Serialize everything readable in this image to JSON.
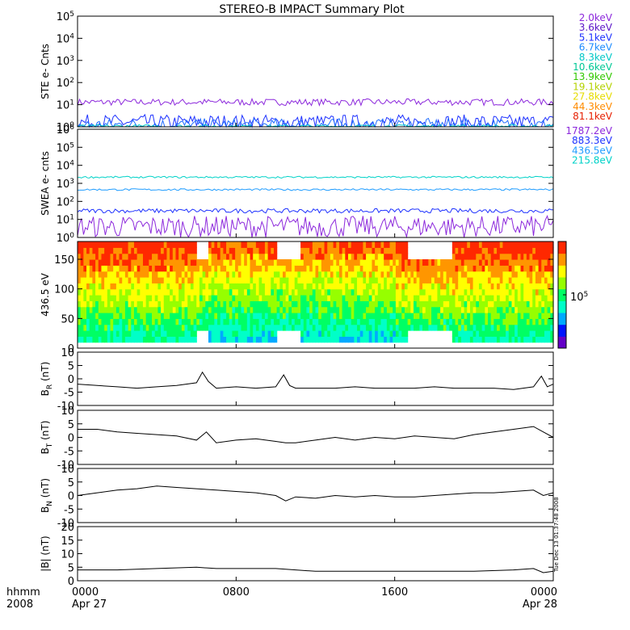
{
  "title": "STEREO-B IMPACT Summary Plot",
  "footer": {
    "left_top": "hhmm",
    "left_bottom": "2008",
    "ticks": [
      {
        "time": "0000",
        "date": "Apr 27",
        "hour": 0
      },
      {
        "time": "0800",
        "date": "",
        "hour": 8
      },
      {
        "time": "1600",
        "date": "",
        "hour": 16
      },
      {
        "time": "0000",
        "date": "Apr 28",
        "hour": 24
      }
    ]
  },
  "timestamp": "Tue Dec 13 01:37:48 2008",
  "colorbar": {
    "label": "10^5",
    "colors": [
      "#6400c8",
      "#0014ff",
      "#00aaff",
      "#00ffc8",
      "#00ff64",
      "#96ff00",
      "#ffff00",
      "#ff9600",
      "#ff2800"
    ]
  },
  "chart_data": [
    {
      "type": "line",
      "id": "ste",
      "ylabel": "STE e- Cnts",
      "log": true,
      "ylim": [
        1,
        100000
      ],
      "yticks": [
        {
          "v": 1,
          "t": "10^0"
        },
        {
          "v": 10,
          "t": "10^1"
        },
        {
          "v": 100,
          "t": "10^2"
        },
        {
          "v": 1000,
          "t": "10^3"
        },
        {
          "v": 10000,
          "t": "10^4"
        },
        {
          "v": 100000,
          "t": "10^5"
        }
      ],
      "legend": [
        {
          "name": "2.0keV",
          "color": "#8c28dc"
        },
        {
          "name": "3.6keV",
          "color": "#5a14c8"
        },
        {
          "name": "5.1keV",
          "color": "#1e32ff"
        },
        {
          "name": "6.7keV",
          "color": "#1e8cff"
        },
        {
          "name": "8.3keV",
          "color": "#00c8c8"
        },
        {
          "name": "10.6keV",
          "color": "#00c896"
        },
        {
          "name": "13.9keV",
          "color": "#32c800"
        },
        {
          "name": "19.1keV",
          "color": "#b4d200"
        },
        {
          "name": "27.8keV",
          "color": "#e6dc00"
        },
        {
          "name": "44.3keV",
          "color": "#ff8c00"
        },
        {
          "name": "81.1keV",
          "color": "#e61e00"
        }
      ],
      "series": [
        {
          "name": "2.0keV",
          "color": "#8c28dc",
          "base": 13,
          "noise": 0.15
        },
        {
          "name": "3.6keV",
          "color": "#1e32ff",
          "base": 1.6,
          "noise": 0.35
        },
        {
          "name": "5.1keV",
          "color": "#1e6cff",
          "base": 1.2,
          "noise": 0.3
        },
        {
          "name": "8.3keV",
          "color": "#00c8c8",
          "base": 1.05,
          "noise": 0.08
        }
      ]
    },
    {
      "type": "line",
      "id": "swea",
      "ylabel": "SWEA e- cnts",
      "log": true,
      "ylim": [
        1,
        1000000
      ],
      "yticks": [
        {
          "v": 1,
          "t": "10^0"
        },
        {
          "v": 10,
          "t": "10^1"
        },
        {
          "v": 100,
          "t": "10^2"
        },
        {
          "v": 1000,
          "t": "10^3"
        },
        {
          "v": 10000,
          "t": "10^4"
        },
        {
          "v": 100000,
          "t": "10^5"
        },
        {
          "v": 1000000,
          "t": "10^6"
        }
      ],
      "legend": [
        {
          "name": "1787.2eV",
          "color": "#8c28dc"
        },
        {
          "name": "883.3eV",
          "color": "#1e32ff"
        },
        {
          "name": "436.5eV",
          "color": "#1e9cff"
        },
        {
          "name": "215.8eV",
          "color": "#00d2c8"
        }
      ],
      "series": [
        {
          "name": "1787.2eV",
          "color": "#8c28dc",
          "base": 4,
          "noise": 0.6
        },
        {
          "name": "883.3eV",
          "color": "#1e32ff",
          "base": 30,
          "noise": 0.12
        },
        {
          "name": "436.5eV",
          "color": "#1e9cff",
          "base": 450,
          "noise": 0.05
        },
        {
          "name": "215.8eV",
          "color": "#00d2c8",
          "base": 2200,
          "noise": 0.05
        }
      ]
    },
    {
      "type": "heatmap",
      "id": "pad",
      "ylabel": "436.5 eV",
      "ylim": [
        0,
        180
      ],
      "yticks": [
        {
          "v": 0,
          "t": "0"
        },
        {
          "v": 50,
          "t": "50"
        },
        {
          "v": 100,
          "t": "100"
        },
        {
          "v": 150,
          "t": "150"
        }
      ],
      "gaps": [
        [
          5.9,
          6.6
        ],
        [
          10.0,
          11.2
        ],
        [
          16.6,
          18.8
        ]
      ]
    },
    {
      "type": "line",
      "id": "br",
      "ylabel": "B_R (nT)",
      "ylim": [
        -10,
        10
      ],
      "yticks": [
        {
          "v": -10,
          "t": "-10"
        },
        {
          "v": -5,
          "t": "-5"
        },
        {
          "v": 0,
          "t": "0"
        },
        {
          "v": 5,
          "t": "5"
        },
        {
          "v": 10,
          "t": "10"
        }
      ],
      "points": [
        [
          0,
          -2
        ],
        [
          1,
          -2.5
        ],
        [
          2,
          -3
        ],
        [
          3,
          -3.5
        ],
        [
          4,
          -3
        ],
        [
          5,
          -2.5
        ],
        [
          6,
          -1.5
        ],
        [
          6.3,
          2.5
        ],
        [
          6.6,
          -1
        ],
        [
          7,
          -3.5
        ],
        [
          8,
          -3
        ],
        [
          9,
          -3.5
        ],
        [
          10,
          -3
        ],
        [
          10.4,
          1.5
        ],
        [
          10.7,
          -2.5
        ],
        [
          11,
          -3.5
        ],
        [
          12,
          -3.5
        ],
        [
          13,
          -3.5
        ],
        [
          14,
          -3
        ],
        [
          15,
          -3.5
        ],
        [
          16,
          -3.5
        ],
        [
          17,
          -3.5
        ],
        [
          18,
          -3
        ],
        [
          19,
          -3.5
        ],
        [
          20,
          -3.5
        ],
        [
          21,
          -3.5
        ],
        [
          22,
          -4
        ],
        [
          23,
          -3
        ],
        [
          23.4,
          1
        ],
        [
          23.7,
          -3
        ],
        [
          24,
          -2
        ]
      ]
    },
    {
      "type": "line",
      "id": "bt",
      "ylabel": "B_T (nT)",
      "ylim": [
        -10,
        10
      ],
      "yticks": [
        {
          "v": -10,
          "t": "-10"
        },
        {
          "v": -5,
          "t": "-5"
        },
        {
          "v": 0,
          "t": "0"
        },
        {
          "v": 5,
          "t": "5"
        },
        {
          "v": 10,
          "t": "10"
        }
      ],
      "points": [
        [
          0,
          3
        ],
        [
          1,
          3
        ],
        [
          2,
          2
        ],
        [
          3,
          1.5
        ],
        [
          4,
          1
        ],
        [
          5,
          0.5
        ],
        [
          6,
          -1
        ],
        [
          6.5,
          2
        ],
        [
          7,
          -2
        ],
        [
          8,
          -1
        ],
        [
          9,
          -0.5
        ],
        [
          10,
          -1.5
        ],
        [
          10.5,
          -2
        ],
        [
          11,
          -2
        ],
        [
          12,
          -1
        ],
        [
          13,
          0
        ],
        [
          14,
          -1
        ],
        [
          15,
          0
        ],
        [
          16,
          -0.5
        ],
        [
          17,
          0.5
        ],
        [
          18,
          0
        ],
        [
          19,
          -0.5
        ],
        [
          20,
          1
        ],
        [
          21,
          2
        ],
        [
          22,
          3
        ],
        [
          23,
          4
        ],
        [
          23.5,
          2
        ],
        [
          24,
          0
        ]
      ]
    },
    {
      "type": "line",
      "id": "bn",
      "ylabel": "B_N (nT)",
      "ylim": [
        -10,
        10
      ],
      "yticks": [
        {
          "v": -10,
          "t": "-10"
        },
        {
          "v": -5,
          "t": "-5"
        },
        {
          "v": 0,
          "t": "0"
        },
        {
          "v": 5,
          "t": "5"
        },
        {
          "v": 10,
          "t": "10"
        }
      ],
      "points": [
        [
          0,
          0
        ],
        [
          1,
          1
        ],
        [
          2,
          2
        ],
        [
          3,
          2.5
        ],
        [
          4,
          3.5
        ],
        [
          5,
          3
        ],
        [
          6,
          2.5
        ],
        [
          7,
          2
        ],
        [
          8,
          1.5
        ],
        [
          9,
          1
        ],
        [
          10,
          0
        ],
        [
          10.5,
          -2
        ],
        [
          11,
          -0.5
        ],
        [
          12,
          -1
        ],
        [
          13,
          0
        ],
        [
          14,
          -0.5
        ],
        [
          15,
          0
        ],
        [
          16,
          -0.5
        ],
        [
          17,
          -0.5
        ],
        [
          18,
          0
        ],
        [
          19,
          0.5
        ],
        [
          20,
          1
        ],
        [
          21,
          1
        ],
        [
          22,
          1.5
        ],
        [
          23,
          2
        ],
        [
          23.5,
          0
        ],
        [
          24,
          1
        ]
      ]
    },
    {
      "type": "line",
      "id": "bmag",
      "ylabel": "|B| (nT)",
      "ylim": [
        0,
        20
      ],
      "yticks": [
        {
          "v": 0,
          "t": "0"
        },
        {
          "v": 5,
          "t": "5"
        },
        {
          "v": 10,
          "t": "10"
        },
        {
          "v": 15,
          "t": "15"
        },
        {
          "v": 20,
          "t": "20"
        }
      ],
      "points": [
        [
          0,
          4
        ],
        [
          2,
          4
        ],
        [
          4,
          4.5
        ],
        [
          6,
          5
        ],
        [
          7,
          4.5
        ],
        [
          8,
          4.5
        ],
        [
          10,
          4.5
        ],
        [
          11,
          4
        ],
        [
          12,
          3.5
        ],
        [
          14,
          3.5
        ],
        [
          16,
          3.5
        ],
        [
          18,
          3.5
        ],
        [
          20,
          3.5
        ],
        [
          22,
          4
        ],
        [
          23,
          4.5
        ],
        [
          23.5,
          3
        ],
        [
          24,
          3.5
        ]
      ]
    }
  ]
}
